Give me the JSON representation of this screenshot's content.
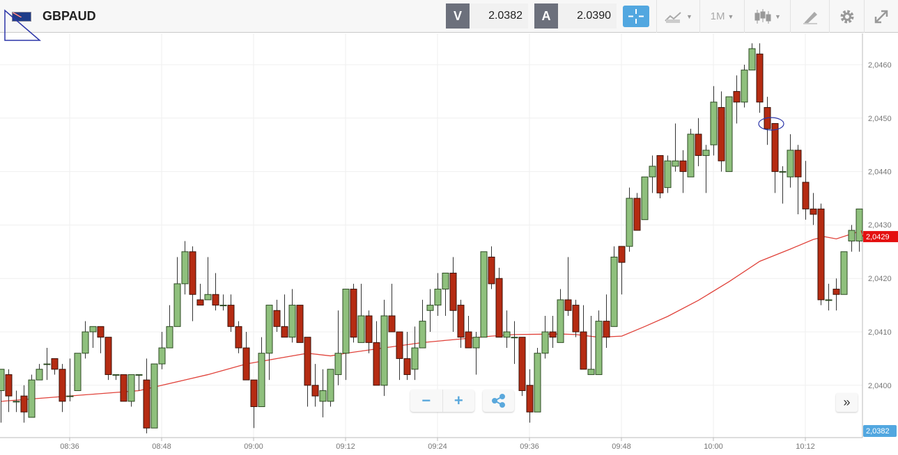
{
  "header": {
    "symbol": "GBPAUD",
    "flag_icon": "gbp-aud-flag-icon",
    "sell_label": "V",
    "sell_price": "2.0382",
    "buy_label": "A",
    "buy_price": "2.0390",
    "timeframe": "1M",
    "icons": [
      "crosshair-icon",
      "chart-type-icon",
      "candlestick-icon",
      "drawing-tool-icon",
      "gear-icon",
      "expand-icon"
    ]
  },
  "controls": {
    "zoom_out": "−",
    "zoom_in": "+",
    "share_icon": "share-icon",
    "scroll_latest": "»"
  },
  "colors": {
    "up": "#8fc07d",
    "down": "#b52b12",
    "ma": "#e0423a",
    "accent": "#52a7e0",
    "ma_label_bg": "#e40f0f"
  },
  "chart_data": {
    "type": "candlestick",
    "symbol": "GBPAUD",
    "interval": "1M",
    "start_time": "08:27",
    "y_range": [
      2.03875,
      2.04668
    ],
    "y_ticks": [
      "2,0400",
      "2,0410",
      "2,0420",
      "2,0430",
      "2,0440",
      "2,0450",
      "2,0460"
    ],
    "y_tick_values": [
      2.04,
      2.041,
      2.042,
      2.043,
      2.044,
      2.045,
      2.046
    ],
    "x_ticks": [
      "08:36",
      "08:48",
      "09:00",
      "09:12",
      "09:24",
      "09:36",
      "09:48",
      "10:00",
      "10:12"
    ],
    "x_tick_index": [
      9,
      21,
      33,
      45,
      57,
      69,
      81,
      93,
      105
    ],
    "grid": true,
    "ma_label": "2,0429",
    "ma_value": 2.0429,
    "bid_label": "2,0382",
    "bid_value": 2.0382,
    "highlighted_candle_index": 100,
    "candles_ohlc": [
      [
        2.0399,
        2.0403,
        2.0393,
        2.0403
      ],
      [
        2.0402,
        2.0403,
        2.0395,
        2.0398
      ],
      [
        2.0397,
        2.0399,
        2.0395,
        2.0397
      ],
      [
        2.0398,
        2.04,
        2.0393,
        2.0395
      ],
      [
        2.0394,
        2.0402,
        2.0394,
        2.0401
      ],
      [
        2.0401,
        2.0404,
        2.0401,
        2.0403
      ],
      [
        2.0404,
        2.0407,
        2.0401,
        2.0404
      ],
      [
        2.0405,
        2.0405,
        2.0402,
        2.0403
      ],
      [
        2.0403,
        2.0404,
        2.0395,
        2.0397
      ],
      [
        2.0398,
        2.0405,
        2.0397,
        2.0398
      ],
      [
        2.0399,
        2.0406,
        2.0399,
        2.0406
      ],
      [
        2.0406,
        2.0412,
        2.0405,
        2.041
      ],
      [
        2.041,
        2.0411,
        2.0407,
        2.0411
      ],
      [
        2.0411,
        2.0411,
        2.0406,
        2.0409
      ],
      [
        2.0409,
        2.0409,
        2.0401,
        2.0402
      ],
      [
        2.0402,
        2.0402,
        2.0401,
        2.0402
      ],
      [
        2.0402,
        2.0402,
        2.0397,
        2.0397
      ],
      [
        2.0397,
        2.0402,
        2.0396,
        2.0402
      ],
      [
        2.0402,
        2.0402,
        2.0399,
        2.0402
      ],
      [
        2.0401,
        2.0405,
        2.0391,
        2.0392
      ],
      [
        2.0392,
        2.0404,
        2.0392,
        2.0404
      ],
      [
        2.0404,
        2.041,
        2.0403,
        2.0407
      ],
      [
        2.0407,
        2.0415,
        2.0407,
        2.0411
      ],
      [
        2.0411,
        2.0424,
        2.0411,
        2.0419
      ],
      [
        2.0419,
        2.0427,
        2.0417,
        2.0425
      ],
      [
        2.0425,
        2.0426,
        2.0412,
        2.0417
      ],
      [
        2.0416,
        2.0419,
        2.0415,
        2.0415
      ],
      [
        2.0416,
        2.0424,
        2.0416,
        2.0417
      ],
      [
        2.0417,
        2.0421,
        2.0414,
        2.0415
      ],
      [
        2.0415,
        2.0417,
        2.0414,
        2.0415
      ],
      [
        2.0415,
        2.0417,
        2.041,
        2.0411
      ],
      [
        2.0411,
        2.0412,
        2.0406,
        2.0407
      ],
      [
        2.0407,
        2.041,
        2.0401,
        2.0401
      ],
      [
        2.0401,
        2.0401,
        2.0392,
        2.0396
      ],
      [
        2.0396,
        2.0409,
        2.0396,
        2.0406
      ],
      [
        2.0406,
        2.0415,
        2.0401,
        2.0415
      ],
      [
        2.0414,
        2.0416,
        2.041,
        2.0411
      ],
      [
        2.0411,
        2.0417,
        2.0409,
        2.0409
      ],
      [
        2.0409,
        2.0418,
        2.0408,
        2.0415
      ],
      [
        2.0415,
        2.0415,
        2.0408,
        2.0408
      ],
      [
        2.0409,
        2.0409,
        2.0396,
        2.04
      ],
      [
        2.04,
        2.0404,
        2.0396,
        2.0398
      ],
      [
        2.0397,
        2.0403,
        2.0394,
        2.0399
      ],
      [
        2.0397,
        2.0403,
        2.0396,
        2.0403
      ],
      [
        2.0402,
        2.0414,
        2.04,
        2.0406
      ],
      [
        2.0406,
        2.0418,
        2.0401,
        2.0418
      ],
      [
        2.0418,
        2.0419,
        2.0408,
        2.0409
      ],
      [
        2.0408,
        2.0419,
        2.0408,
        2.0413
      ],
      [
        2.0413,
        2.0414,
        2.0406,
        2.0408
      ],
      [
        2.0408,
        2.0412,
        2.04,
        2.04
      ],
      [
        2.04,
        2.0416,
        2.0398,
        2.0413
      ],
      [
        2.0413,
        2.0419,
        2.041,
        2.041
      ],
      [
        2.041,
        2.041,
        2.0401,
        2.0405
      ],
      [
        2.0405,
        2.041,
        2.0401,
        2.0402
      ],
      [
        2.0403,
        2.0411,
        2.0401,
        2.0407
      ],
      [
        2.0407,
        2.0416,
        2.0407,
        2.0412
      ],
      [
        2.0414,
        2.0418,
        2.041,
        2.0415
      ],
      [
        2.0415,
        2.0421,
        2.0413,
        2.0418
      ],
      [
        2.0418,
        2.0421,
        2.0413,
        2.0421
      ],
      [
        2.0421,
        2.0424,
        2.041,
        2.0414
      ],
      [
        2.0415,
        2.0416,
        2.0407,
        2.0409
      ],
      [
        2.041,
        2.0413,
        2.0407,
        2.0407
      ],
      [
        2.0407,
        2.041,
        2.0402,
        2.0409
      ],
      [
        2.0409,
        2.0425,
        2.0409,
        2.0425
      ],
      [
        2.0424,
        2.0426,
        2.0418,
        2.0419
      ],
      [
        2.042,
        2.0422,
        2.0409,
        2.0409
      ],
      [
        2.0409,
        2.0414,
        2.0407,
        2.041
      ],
      [
        2.0409,
        2.0412,
        2.0404,
        2.0409
      ],
      [
        2.0409,
        2.0409,
        2.0398,
        2.0399
      ],
      [
        2.04,
        2.0403,
        2.0393,
        2.0395
      ],
      [
        2.0395,
        2.0407,
        2.0395,
        2.0406
      ],
      [
        2.0406,
        2.0413,
        2.0405,
        2.041
      ],
      [
        2.041,
        2.0413,
        2.0407,
        2.0409
      ],
      [
        2.0408,
        2.0418,
        2.0408,
        2.0416
      ],
      [
        2.0416,
        2.0424,
        2.0413,
        2.0414
      ],
      [
        2.0415,
        2.0416,
        2.0409,
        2.041
      ],
      [
        2.041,
        2.0415,
        2.0403,
        2.0403
      ],
      [
        2.0402,
        2.0413,
        2.0402,
        2.0403
      ],
      [
        2.0402,
        2.0414,
        2.0402,
        2.0412
      ],
      [
        2.0412,
        2.0417,
        2.0407,
        2.0409
      ],
      [
        2.0411,
        2.0426,
        2.0411,
        2.0424
      ],
      [
        2.0426,
        2.0426,
        2.0417,
        2.0423
      ],
      [
        2.0426,
        2.0437,
        2.0425,
        2.0435
      ],
      [
        2.0435,
        2.0436,
        2.0429,
        2.0429
      ],
      [
        2.0431,
        2.0439,
        2.0431,
        2.0439
      ],
      [
        2.0439,
        2.0443,
        2.0436,
        2.0441
      ],
      [
        2.0443,
        2.0443,
        2.0435,
        2.0436
      ],
      [
        2.0437,
        2.0443,
        2.0436,
        2.0442
      ],
      [
        2.0441,
        2.0449,
        2.044,
        2.0442
      ],
      [
        2.0442,
        2.0444,
        2.0436,
        2.044
      ],
      [
        2.0439,
        2.0448,
        2.0439,
        2.0447
      ],
      [
        2.0447,
        2.045,
        2.0441,
        2.0443
      ],
      [
        2.0443,
        2.0445,
        2.0436,
        2.0444
      ],
      [
        2.0445,
        2.0456,
        2.0443,
        2.0453
      ],
      [
        2.0452,
        2.0455,
        2.044,
        2.0442
      ],
      [
        2.044,
        2.0454,
        2.044,
        2.0454
      ],
      [
        2.0455,
        2.0458,
        2.0449,
        2.0453
      ],
      [
        2.0453,
        2.046,
        2.0452,
        2.0459
      ],
      [
        2.0459,
        2.0464,
        2.0459,
        2.0463
      ],
      [
        2.0462,
        2.0464,
        2.0451,
        2.0453
      ],
      [
        2.0452,
        2.0454,
        2.0445,
        2.0448
      ],
      [
        2.0449,
        2.0449,
        2.0436,
        2.044
      ],
      [
        2.044,
        2.0441,
        2.0434,
        2.044
      ],
      [
        2.0439,
        2.0447,
        2.0437,
        2.0444
      ],
      [
        2.0444,
        2.0445,
        2.0432,
        2.0439
      ],
      [
        2.0438,
        2.0442,
        2.0431,
        2.0433
      ],
      [
        2.0433,
        2.0436,
        2.043,
        2.0432
      ],
      [
        2.0433,
        2.0434,
        2.0415,
        2.0416
      ],
      [
        2.0416,
        2.0419,
        2.0414,
        2.0416
      ],
      [
        2.0418,
        2.042,
        2.0414,
        2.0417
      ],
      [
        2.0417,
        2.0425,
        2.0417,
        2.0425
      ],
      [
        2.0427,
        2.043,
        2.0425,
        2.0429
      ],
      [
        2.0427,
        2.0433,
        2.0425,
        2.0433
      ]
    ],
    "moving_average": [
      [
        0,
        2.0397
      ],
      [
        9,
        2.0398
      ],
      [
        18,
        2.0399
      ],
      [
        21,
        2.04
      ],
      [
        24,
        2.0401
      ],
      [
        27,
        2.0402
      ],
      [
        32,
        2.0404
      ],
      [
        36,
        2.0405
      ],
      [
        40,
        2.0406
      ],
      [
        43,
        2.04055
      ],
      [
        45,
        2.0406
      ],
      [
        50,
        2.0407
      ],
      [
        55,
        2.0408
      ],
      [
        58,
        2.04084
      ],
      [
        61,
        2.04088
      ],
      [
        64,
        2.04092
      ],
      [
        67,
        2.04095
      ],
      [
        73,
        2.04096
      ],
      [
        75,
        2.04095
      ],
      [
        78,
        2.0409
      ],
      [
        81,
        2.04092
      ],
      [
        84,
        2.0411
      ],
      [
        87,
        2.04129
      ],
      [
        91,
        2.04159
      ],
      [
        95,
        2.04194
      ],
      [
        99,
        2.04232
      ],
      [
        103,
        2.04255
      ],
      [
        106,
        2.04273
      ],
      [
        107.5,
        2.04278
      ],
      [
        109,
        2.04274
      ],
      [
        112,
        2.04288
      ]
    ]
  }
}
